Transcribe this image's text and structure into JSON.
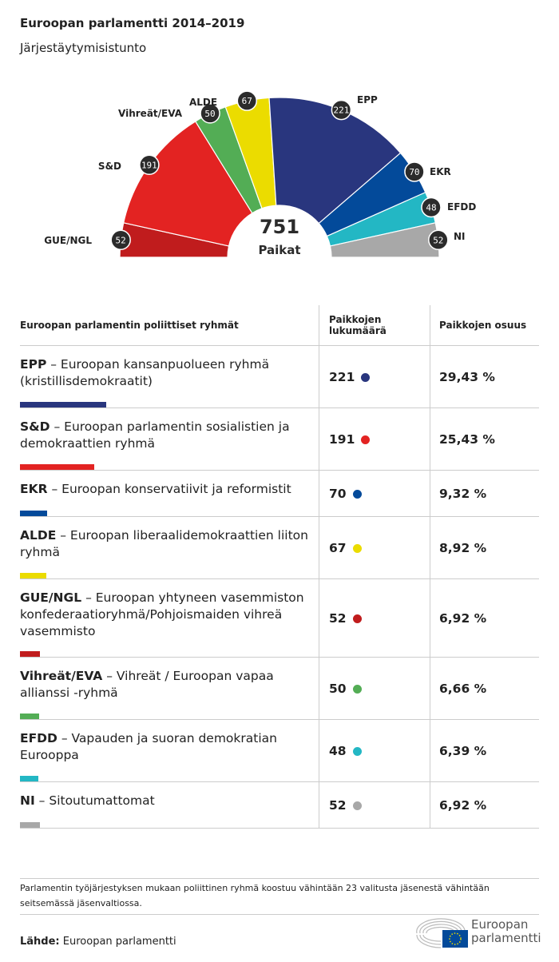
{
  "title": "Euroopan parlamentti 2014–2019",
  "subtitle": "Järjestäytymisistunto",
  "colors": {
    "EPP": "#29367e",
    "S&D": "#e32322",
    "EKR": "#034a9a",
    "ALDE": "#ebdc00",
    "GUE/NGL": "#c01c1d",
    "Vihreät/EVA": "#53ad55",
    "EFDD": "#23b7c4",
    "NI": "#a8a8a8"
  },
  "chart_data": {
    "type": "hemicycle",
    "total": 751,
    "total_label": "Paikat",
    "order": [
      "GUE/NGL",
      "S&D",
      "Vihreät/EVA",
      "ALDE",
      "EPP",
      "EKR",
      "EFDD",
      "NI"
    ],
    "seats": [
      52,
      191,
      50,
      67,
      221,
      70,
      48,
      52
    ]
  },
  "table": {
    "headers": [
      "Euroopan parlamentin poliittiset ryhmät",
      "Paikkojen lukumäärä",
      "Paikkojen osuus"
    ],
    "rows": [
      {
        "abbr": "EPP",
        "desc": " – Euroopan kansanpuolueen ryhmä (kristillisdemokraatit)",
        "seats": "221",
        "share": "29,43 %"
      },
      {
        "abbr": "S&D",
        "desc": " – Euroopan parlamentin sosialistien ja demokraattien ryhmä",
        "seats": "191",
        "share": "25,43 %"
      },
      {
        "abbr": "EKR",
        "desc": " – Euroopan konservatiivit ja reformistit",
        "seats": "70",
        "share": "9,32 %"
      },
      {
        "abbr": "ALDE",
        "desc": " – Euroopan liberaalidemokraattien liiton ryhmä",
        "seats": "67",
        "share": "8,92 %"
      },
      {
        "abbr": "GUE/NGL",
        "desc": " – Euroopan yhtyneen vasemmiston konfederaatioryhmä/Pohjoismaiden vihreä vasemmisto",
        "seats": "52",
        "share": "6,92 %"
      },
      {
        "abbr": "Vihreät/EVA",
        "desc": " – Vihreät / Euroopan vapaa allianssi -ryhmä",
        "seats": "50",
        "share": "6,66 %"
      },
      {
        "abbr": "EFDD",
        "desc": " – Vapauden ja suoran demokratian Eurooppa",
        "seats": "48",
        "share": "6,39 %"
      },
      {
        "abbr": "NI",
        "desc": " – Sitoutumattomat",
        "seats": "52",
        "share": "6,92 %"
      }
    ]
  },
  "note": "Parlamentin työjärjestyksen mukaan poliittinen ryhmä koostuu vähintään 23 valitusta jäsenestä vähintään seitsemässä jäsenvaltiossa.",
  "source_label": "Lähde:",
  "source": " Euroopan parlamentti",
  "logo": {
    "line1": "Euroopan",
    "line2": "parlamentti"
  }
}
